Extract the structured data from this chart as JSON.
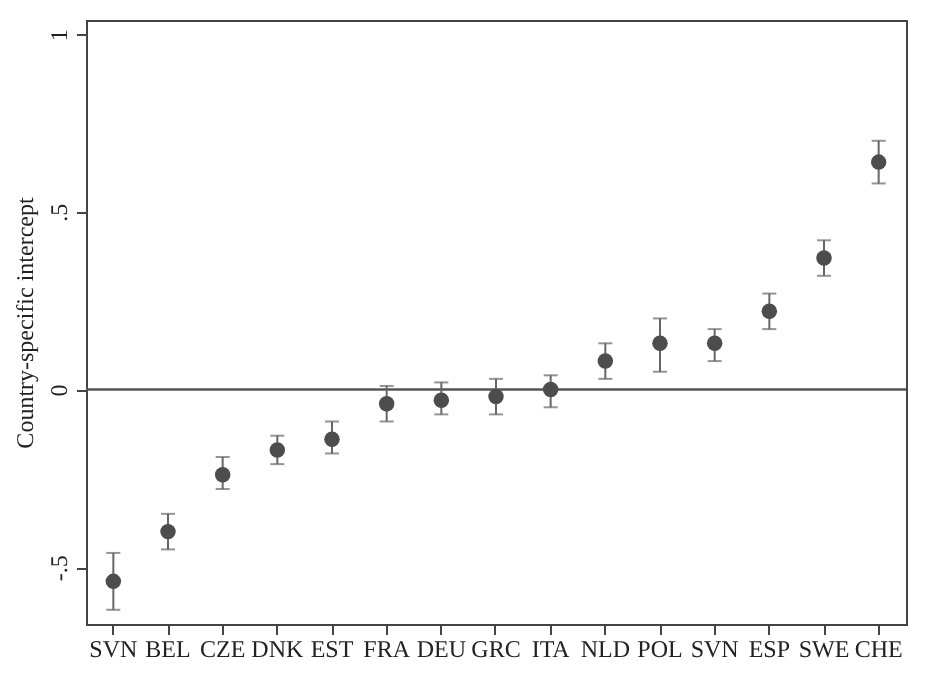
{
  "chart_data": {
    "type": "scatter",
    "ylabel": "Country-specific intercept",
    "categories": [
      "SVN",
      "BEL",
      "CZE",
      "DNK",
      "EST",
      "FRA",
      "DEU",
      "GRC",
      "ITA",
      "NLD",
      "POL",
      "SVN",
      "ESP",
      "SWE",
      "CHE"
    ],
    "series": [
      {
        "color": "#4d4d4d",
        "values": [
          -0.54,
          -0.4,
          -0.24,
          -0.17,
          -0.14,
          -0.04,
          -0.03,
          -0.02,
          0.0,
          0.08,
          0.13,
          0.13,
          0.22,
          0.37,
          0.64
        ],
        "errors": [
          [
            -0.62,
            -0.46
          ],
          [
            -0.45,
            -0.35
          ],
          [
            -0.28,
            -0.19
          ],
          [
            -0.21,
            -0.13
          ],
          [
            -0.18,
            -0.09
          ],
          [
            -0.09,
            0.01
          ],
          [
            -0.07,
            0.02
          ],
          [
            -0.07,
            0.03
          ],
          [
            -0.05,
            0.04
          ],
          [
            0.03,
            0.13
          ],
          [
            0.05,
            0.2
          ],
          [
            0.08,
            0.17
          ],
          [
            0.17,
            0.27
          ],
          [
            0.32,
            0.42
          ],
          [
            0.58,
            0.7
          ]
        ]
      }
    ],
    "ylim": [
      -0.66,
      1.04
    ],
    "yticks": [
      {
        "value": -0.5,
        "label": "-.5"
      },
      0,
      {
        "value": 0.5,
        "label": ".5"
      },
      1
    ],
    "ref_lines": [
      {
        "axis": "y",
        "value": 0,
        "color": "#555555"
      }
    ],
    "marker": "circle",
    "grid": false
  }
}
